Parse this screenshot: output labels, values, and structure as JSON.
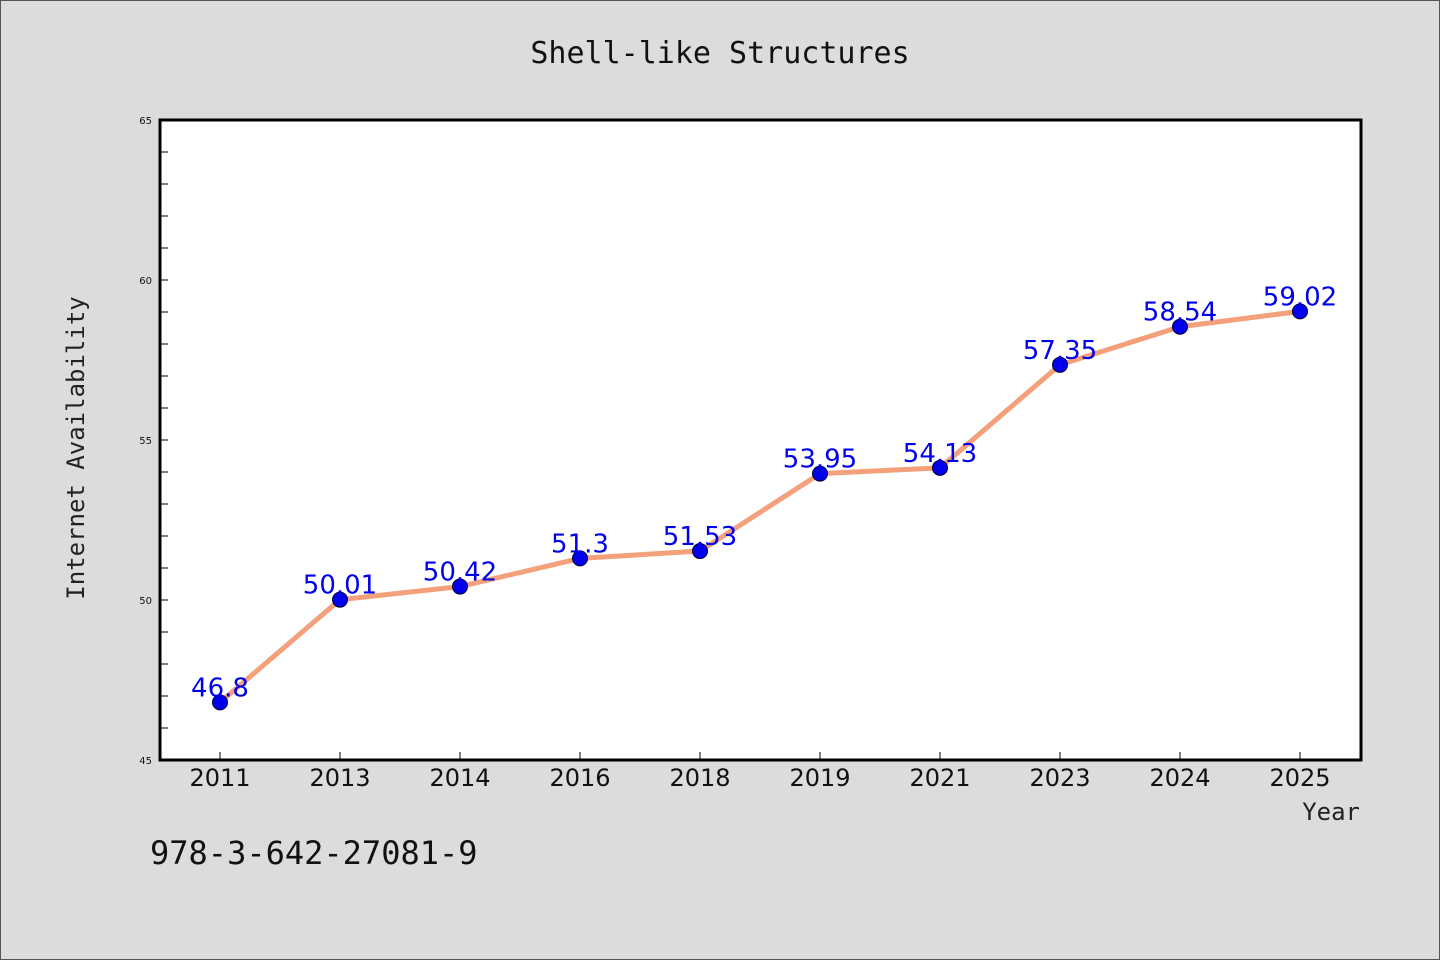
{
  "chart_data": {
    "type": "line",
    "title": "Shell-like Structures",
    "xlabel": "Year",
    "ylabel": "Internet Availability",
    "categories": [
      "2011",
      "2013",
      "2014",
      "2016",
      "2018",
      "2019",
      "2021",
      "2023",
      "2024",
      "2025"
    ],
    "series": [
      {
        "values": [
          46.8,
          50.01,
          50.42,
          51.3,
          51.53,
          53.95,
          54.13,
          57.35,
          58.54,
          59.02
        ]
      }
    ],
    "data_labels": [
      "46.8",
      "50.01",
      "50.42",
      "51.3",
      "51.53",
      "53.95",
      "54.13",
      "57.35",
      "58.54",
      "59.02"
    ],
    "ylim": [
      45,
      65
    ],
    "yticks": [
      45,
      50,
      55,
      60,
      65
    ],
    "grid": false,
    "line_color": "#f4a07a",
    "marker_color": "#0000ee",
    "label_color": "#0000ee"
  },
  "footer_code": "978-3-642-27081-9"
}
